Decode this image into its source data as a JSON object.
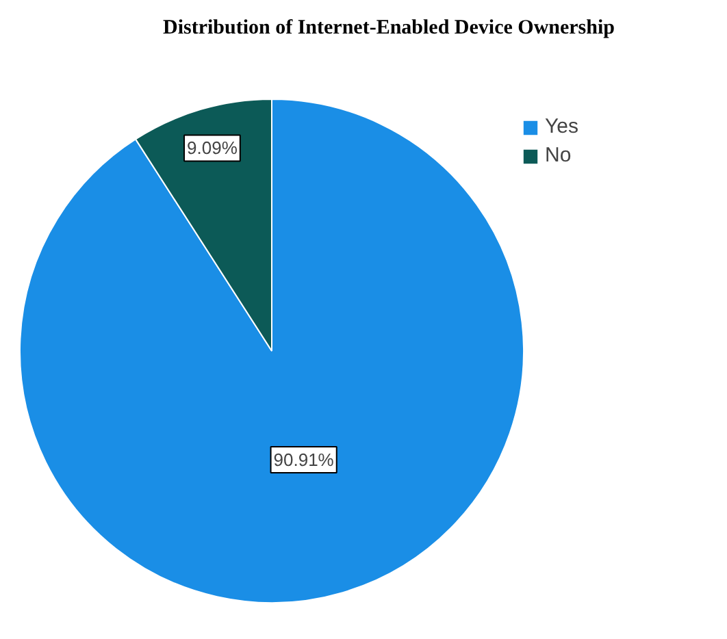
{
  "chart_data": {
    "type": "pie",
    "title": "Distribution of Internet-Enabled Device Ownership",
    "categories": [
      "Yes",
      "No"
    ],
    "values": [
      90.91,
      9.09
    ],
    "colors": [
      "#1a8ee6",
      "#0c5a57"
    ],
    "value_labels": [
      "90.91%",
      "9.09%"
    ],
    "legend": "top right"
  }
}
